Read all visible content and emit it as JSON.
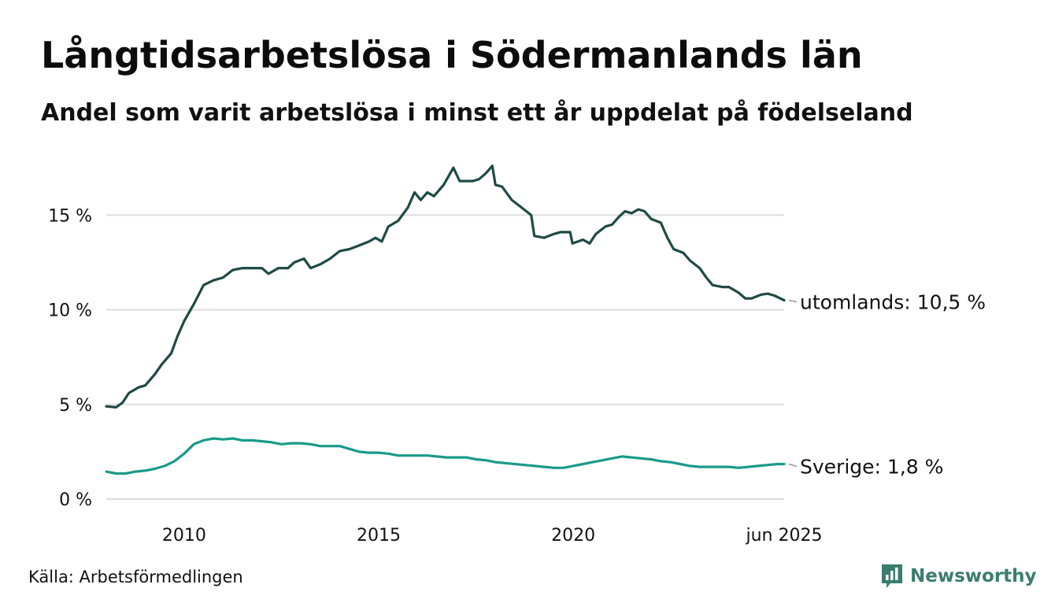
{
  "header": {
    "title": "Långtidsarbetslösa i Södermanlands län",
    "subtitle": "Andel som varit arbetslösa i minst ett år uppdelat på födelseland"
  },
  "footer": {
    "source": "Källa: Arbetsförmedlingen",
    "brand": "Newsworthy"
  },
  "colors": {
    "utomlands": "#1e4a45",
    "sverige": "#1a9a8a",
    "grid": "#dedede",
    "brand": "#3a7d6e"
  },
  "chart_data": {
    "type": "line",
    "title": "Långtidsarbetslösa i Södermanlands län",
    "subtitle": "Andel som varit arbetslösa i minst ett år uppdelat på födelseland",
    "xlabel": "",
    "ylabel": "",
    "xlim": [
      2008.0,
      2025.42
    ],
    "ylim": [
      0,
      18
    ],
    "grid": true,
    "legend": "end-of-line labels (right)",
    "y_ticks": [
      {
        "value": 0,
        "label": "0 %"
      },
      {
        "value": 5,
        "label": "5 %"
      },
      {
        "value": 10,
        "label": "10 %"
      },
      {
        "value": 15,
        "label": "15 %"
      }
    ],
    "x_ticks": [
      {
        "value": 2010,
        "label": "2010"
      },
      {
        "value": 2015,
        "label": "2015"
      },
      {
        "value": 2020,
        "label": "2020"
      },
      {
        "value": 2025.42,
        "label": "jun 2025"
      }
    ],
    "series": [
      {
        "name": "utomlands",
        "end_label": "utomlands: 10,5 %",
        "color": "#1e4a45",
        "points": [
          [
            2008.0,
            4.9
          ],
          [
            2008.25,
            4.85
          ],
          [
            2008.42,
            5.1
          ],
          [
            2008.58,
            5.6
          ],
          [
            2008.83,
            5.9
          ],
          [
            2009.0,
            6.0
          ],
          [
            2009.25,
            6.6
          ],
          [
            2009.42,
            7.1
          ],
          [
            2009.67,
            7.7
          ],
          [
            2009.83,
            8.6
          ],
          [
            2010.0,
            9.4
          ],
          [
            2010.25,
            10.3
          ],
          [
            2010.5,
            11.3
          ],
          [
            2010.75,
            11.55
          ],
          [
            2011.0,
            11.7
          ],
          [
            2011.25,
            12.1
          ],
          [
            2011.5,
            12.2
          ],
          [
            2011.75,
            12.2
          ],
          [
            2012.0,
            12.2
          ],
          [
            2012.17,
            11.9
          ],
          [
            2012.42,
            12.2
          ],
          [
            2012.67,
            12.2
          ],
          [
            2012.83,
            12.5
          ],
          [
            2013.08,
            12.7
          ],
          [
            2013.25,
            12.2
          ],
          [
            2013.5,
            12.4
          ],
          [
            2013.75,
            12.7
          ],
          [
            2014.0,
            13.1
          ],
          [
            2014.25,
            13.2
          ],
          [
            2014.5,
            13.4
          ],
          [
            2014.75,
            13.6
          ],
          [
            2014.92,
            13.8
          ],
          [
            2015.08,
            13.6
          ],
          [
            2015.25,
            14.4
          ],
          [
            2015.5,
            14.7
          ],
          [
            2015.75,
            15.4
          ],
          [
            2015.92,
            16.2
          ],
          [
            2016.08,
            15.8
          ],
          [
            2016.25,
            16.2
          ],
          [
            2016.42,
            16.0
          ],
          [
            2016.67,
            16.6
          ],
          [
            2016.92,
            17.5
          ],
          [
            2017.08,
            16.8
          ],
          [
            2017.25,
            16.8
          ],
          [
            2017.42,
            16.8
          ],
          [
            2017.58,
            16.9
          ],
          [
            2017.75,
            17.2
          ],
          [
            2017.92,
            17.6
          ],
          [
            2018.0,
            16.6
          ],
          [
            2018.17,
            16.5
          ],
          [
            2018.42,
            15.8
          ],
          [
            2018.67,
            15.4
          ],
          [
            2018.92,
            15.0
          ],
          [
            2019.0,
            13.9
          ],
          [
            2019.25,
            13.8
          ],
          [
            2019.5,
            14.0
          ],
          [
            2019.67,
            14.1
          ],
          [
            2019.92,
            14.1
          ],
          [
            2019.98,
            13.5
          ],
          [
            2020.25,
            13.7
          ],
          [
            2020.42,
            13.5
          ],
          [
            2020.58,
            14.0
          ],
          [
            2020.83,
            14.4
          ],
          [
            2021.0,
            14.5
          ],
          [
            2021.17,
            14.9
          ],
          [
            2021.33,
            15.2
          ],
          [
            2021.5,
            15.1
          ],
          [
            2021.67,
            15.3
          ],
          [
            2021.83,
            15.2
          ],
          [
            2022.0,
            14.8
          ],
          [
            2022.25,
            14.6
          ],
          [
            2022.42,
            13.8
          ],
          [
            2022.58,
            13.2
          ],
          [
            2022.83,
            13.0
          ],
          [
            2023.0,
            12.6
          ],
          [
            2023.25,
            12.2
          ],
          [
            2023.42,
            11.7
          ],
          [
            2023.58,
            11.3
          ],
          [
            2023.83,
            11.2
          ],
          [
            2024.0,
            11.2
          ],
          [
            2024.25,
            10.9
          ],
          [
            2024.42,
            10.6
          ],
          [
            2024.58,
            10.6
          ],
          [
            2024.83,
            10.8
          ],
          [
            2025.0,
            10.85
          ],
          [
            2025.17,
            10.75
          ],
          [
            2025.42,
            10.5
          ]
        ]
      },
      {
        "name": "Sverige",
        "end_label": "Sverige:  1,8 %",
        "color": "#1a9a8a",
        "points": [
          [
            2008.0,
            1.45
          ],
          [
            2008.25,
            1.35
          ],
          [
            2008.5,
            1.35
          ],
          [
            2008.75,
            1.45
          ],
          [
            2009.0,
            1.5
          ],
          [
            2009.25,
            1.6
          ],
          [
            2009.5,
            1.75
          ],
          [
            2009.75,
            2.0
          ],
          [
            2010.0,
            2.4
          ],
          [
            2010.25,
            2.9
          ],
          [
            2010.5,
            3.1
          ],
          [
            2010.75,
            3.2
          ],
          [
            2011.0,
            3.15
          ],
          [
            2011.25,
            3.2
          ],
          [
            2011.5,
            3.1
          ],
          [
            2011.75,
            3.1
          ],
          [
            2012.0,
            3.05
          ],
          [
            2012.25,
            3.0
          ],
          [
            2012.5,
            2.9
          ],
          [
            2012.75,
            2.95
          ],
          [
            2013.0,
            2.95
          ],
          [
            2013.25,
            2.9
          ],
          [
            2013.5,
            2.8
          ],
          [
            2013.75,
            2.8
          ],
          [
            2014.0,
            2.8
          ],
          [
            2014.25,
            2.65
          ],
          [
            2014.5,
            2.5
          ],
          [
            2014.75,
            2.45
          ],
          [
            2015.0,
            2.45
          ],
          [
            2015.25,
            2.4
          ],
          [
            2015.5,
            2.3
          ],
          [
            2015.75,
            2.3
          ],
          [
            2016.0,
            2.3
          ],
          [
            2016.25,
            2.3
          ],
          [
            2016.5,
            2.25
          ],
          [
            2016.75,
            2.2
          ],
          [
            2017.0,
            2.2
          ],
          [
            2017.25,
            2.2
          ],
          [
            2017.5,
            2.1
          ],
          [
            2017.75,
            2.05
          ],
          [
            2018.0,
            1.95
          ],
          [
            2018.25,
            1.9
          ],
          [
            2018.5,
            1.85
          ],
          [
            2018.75,
            1.8
          ],
          [
            2019.0,
            1.75
          ],
          [
            2019.25,
            1.7
          ],
          [
            2019.5,
            1.65
          ],
          [
            2019.75,
            1.65
          ],
          [
            2020.0,
            1.75
          ],
          [
            2020.25,
            1.85
          ],
          [
            2020.5,
            1.95
          ],
          [
            2020.75,
            2.05
          ],
          [
            2021.0,
            2.15
          ],
          [
            2021.25,
            2.25
          ],
          [
            2021.5,
            2.2
          ],
          [
            2021.75,
            2.15
          ],
          [
            2022.0,
            2.1
          ],
          [
            2022.25,
            2.0
          ],
          [
            2022.5,
            1.95
          ],
          [
            2022.75,
            1.85
          ],
          [
            2023.0,
            1.75
          ],
          [
            2023.25,
            1.7
          ],
          [
            2023.5,
            1.7
          ],
          [
            2023.75,
            1.7
          ],
          [
            2024.0,
            1.7
          ],
          [
            2024.25,
            1.65
          ],
          [
            2024.5,
            1.7
          ],
          [
            2024.75,
            1.75
          ],
          [
            2025.0,
            1.8
          ],
          [
            2025.25,
            1.85
          ],
          [
            2025.42,
            1.85
          ]
        ]
      }
    ]
  }
}
